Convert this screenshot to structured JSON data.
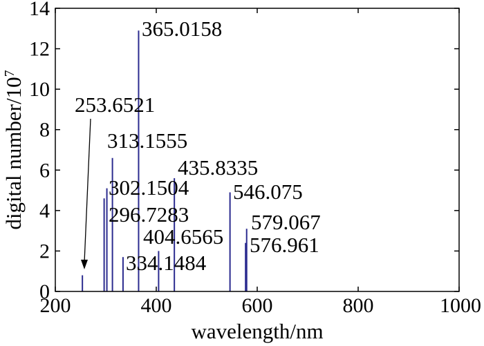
{
  "chart_data": {
    "type": "bar",
    "xlabel": "wavelength/nm",
    "ylabel_main": "digital number/10",
    "ylabel_exp": "7",
    "xlim": [
      200,
      1000
    ],
    "ylim": [
      0,
      14
    ],
    "xticks": [
      200,
      400,
      600,
      800,
      1000
    ],
    "yticks": [
      0,
      2,
      4,
      6,
      8,
      10,
      12,
      14
    ],
    "grid": false,
    "bar_color": "#2b2b8f",
    "series": [
      {
        "x": [
          253.6521,
          296.7283,
          302.1504,
          313.1555,
          334.1484,
          365.0158,
          404.6565,
          435.8335,
          546.075,
          576.961,
          579.067
        ],
        "values": [
          0.8,
          4.6,
          5.1,
          6.6,
          1.7,
          12.9,
          2.0,
          5.6,
          4.9,
          2.4,
          3.1
        ]
      }
    ],
    "annotations": [
      {
        "text": "365.0158",
        "x": 365.0158
      },
      {
        "text": "253.6521",
        "x": 253.6521,
        "arrow": true
      },
      {
        "text": "313.1555",
        "x": 313.1555
      },
      {
        "text": "435.8335",
        "x": 435.8335
      },
      {
        "text": "302.1504",
        "x": 302.1504
      },
      {
        "text": "546.075",
        "x": 546.075
      },
      {
        "text": "296.7283",
        "x": 296.7283
      },
      {
        "text": "579.067",
        "x": 579.067
      },
      {
        "text": "404.6565",
        "x": 404.6565
      },
      {
        "text": "576.961",
        "x": 576.961
      },
      {
        "text": "334.1484",
        "x": 334.1484
      }
    ]
  }
}
